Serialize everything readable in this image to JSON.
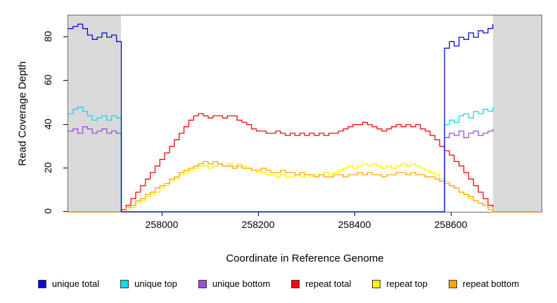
{
  "figure": {
    "xlabel": "Coordinate in Reference Genome",
    "ylabel": "Read Coverage Depth"
  },
  "colors": {
    "shade": "#d9d9d9",
    "box": "#6e6e6e",
    "tick": "#000000"
  },
  "legend": {
    "items": [
      {
        "label": "unique total",
        "color": "#0b0bd8"
      },
      {
        "label": "unique top",
        "color": "#0fdce8"
      },
      {
        "label": "unique bottom",
        "color": "#9c4fde"
      },
      {
        "label": "repeat total",
        "color": "#f40a0a"
      },
      {
        "label": "repeat top",
        "color": "#fff000"
      },
      {
        "label": "repeat bottom",
        "color": "#ffa408"
      }
    ]
  },
  "chart_data": {
    "type": "line",
    "line_style": "step",
    "title": "",
    "xlabel": "Coordinate in Reference Genome",
    "ylabel": "Read Coverage Depth",
    "xlim": [
      257805,
      258786
    ],
    "ylim": [
      0,
      90
    ],
    "x_ticks": [
      258000,
      258200,
      258400,
      258600
    ],
    "y_ticks": [
      0,
      20,
      40,
      60,
      80
    ],
    "grid": false,
    "legend_position": "bottom",
    "shaded_regions": [
      {
        "name": "left-flank",
        "x0": 257805,
        "x1": 257915,
        "color": "#d9d9d9"
      },
      {
        "name": "right-flank",
        "x0": 258685,
        "x1": 258786,
        "color": "#d9d9d9"
      }
    ],
    "x_start": 257805,
    "x_step": 10,
    "draw_order": [
      "repeat total",
      "repeat top",
      "repeat bottom",
      "unique bottom",
      "unique top",
      "unique total"
    ],
    "series": [
      {
        "name": "unique total",
        "color": "#0b0bd8",
        "values": [
          84,
          85,
          86,
          84,
          81,
          79,
          80,
          82,
          80,
          81,
          78,
          0,
          0,
          0,
          0,
          0,
          0,
          0,
          0,
          0,
          0,
          0,
          0,
          0,
          0,
          0,
          0,
          0,
          0,
          0,
          0,
          0,
          0,
          0,
          0,
          0,
          0,
          0,
          0,
          0,
          0,
          0,
          0,
          0,
          0,
          0,
          0,
          0,
          0,
          0,
          0,
          0,
          0,
          0,
          0,
          0,
          0,
          0,
          0,
          0,
          0,
          0,
          0,
          0,
          0,
          0,
          0,
          0,
          0,
          0,
          0,
          0,
          0,
          0,
          0,
          0,
          0,
          0,
          75,
          78,
          76,
          80,
          79,
          82,
          80,
          83,
          82,
          84,
          86
        ]
      },
      {
        "name": "unique top",
        "color": "#0fdce8",
        "values": [
          45,
          47,
          48,
          46,
          44,
          42,
          43,
          44,
          42,
          44,
          43,
          0,
          0,
          0,
          0,
          0,
          0,
          0,
          0,
          0,
          0,
          0,
          0,
          0,
          0,
          0,
          0,
          0,
          0,
          0,
          0,
          0,
          0,
          0,
          0,
          0,
          0,
          0,
          0,
          0,
          0,
          0,
          0,
          0,
          0,
          0,
          0,
          0,
          0,
          0,
          0,
          0,
          0,
          0,
          0,
          0,
          0,
          0,
          0,
          0,
          0,
          0,
          0,
          0,
          0,
          0,
          0,
          0,
          0,
          0,
          0,
          0,
          0,
          0,
          0,
          0,
          0,
          0,
          40,
          42,
          41,
          44,
          45,
          43,
          46,
          45,
          47,
          46,
          48
        ]
      },
      {
        "name": "unique bottom",
        "color": "#9c4fde",
        "values": [
          37,
          38,
          36,
          39,
          38,
          36,
          37,
          38,
          36,
          37,
          36,
          0,
          0,
          0,
          0,
          0,
          0,
          0,
          0,
          0,
          0,
          0,
          0,
          0,
          0,
          0,
          0,
          0,
          0,
          0,
          0,
          0,
          0,
          0,
          0,
          0,
          0,
          0,
          0,
          0,
          0,
          0,
          0,
          0,
          0,
          0,
          0,
          0,
          0,
          0,
          0,
          0,
          0,
          0,
          0,
          0,
          0,
          0,
          0,
          0,
          0,
          0,
          0,
          0,
          0,
          0,
          0,
          0,
          0,
          0,
          0,
          0,
          0,
          0,
          0,
          0,
          0,
          0,
          34,
          36,
          35,
          37,
          34,
          36,
          37,
          35,
          36,
          37,
          38
        ]
      },
      {
        "name": "repeat total",
        "color": "#f40a0a",
        "values": [
          0,
          0,
          0,
          0,
          0,
          0,
          0,
          0,
          0,
          0,
          0,
          1,
          3,
          6,
          9,
          12,
          15,
          18,
          21,
          24,
          27,
          30,
          33,
          36,
          39,
          42,
          44,
          45,
          44,
          43,
          44,
          44,
          43,
          44,
          44,
          42,
          41,
          40,
          38,
          37,
          37,
          36,
          36,
          37,
          36,
          35,
          36,
          35,
          36,
          35,
          36,
          35,
          36,
          35,
          36,
          36,
          37,
          38,
          39,
          40,
          40,
          41,
          40,
          39,
          38,
          37,
          38,
          39,
          40,
          39,
          40,
          39,
          40,
          38,
          37,
          35,
          33,
          30,
          28,
          26,
          23,
          21,
          18,
          15,
          12,
          9,
          6,
          3,
          0,
          0,
          0,
          0,
          0,
          0,
          0,
          0,
          0,
          0,
          0
        ]
      },
      {
        "name": "repeat top",
        "color": "#fff000",
        "values": [
          0,
          0,
          0,
          0,
          0,
          0,
          0,
          0,
          0,
          0,
          0,
          0,
          1,
          2,
          4,
          5,
          7,
          8,
          9,
          11,
          12,
          14,
          15,
          17,
          18,
          19,
          20,
          21,
          21,
          20,
          21,
          22,
          21,
          22,
          21,
          22,
          21,
          20,
          19,
          18,
          18,
          17,
          17,
          16,
          17,
          16,
          16,
          17,
          16,
          17,
          16,
          17,
          17,
          18,
          17,
          18,
          19,
          20,
          21,
          20,
          21,
          22,
          21,
          22,
          21,
          20,
          21,
          20,
          21,
          22,
          21,
          22,
          21,
          20,
          19,
          18,
          17,
          15,
          14,
          12,
          11,
          9,
          8,
          6,
          5,
          4,
          3,
          2,
          0,
          0,
          0,
          0,
          0,
          0,
          0,
          0,
          0,
          0,
          0
        ]
      },
      {
        "name": "repeat bottom",
        "color": "#ffa408",
        "values": [
          0,
          0,
          0,
          0,
          0,
          0,
          0,
          0,
          0,
          0,
          0,
          0,
          2,
          3,
          5,
          6,
          8,
          9,
          11,
          12,
          13,
          15,
          16,
          18,
          19,
          20,
          21,
          22,
          23,
          22,
          23,
          22,
          21,
          21,
          20,
          21,
          20,
          20,
          19,
          19,
          20,
          19,
          18,
          18,
          19,
          18,
          18,
          17,
          18,
          17,
          17,
          16,
          17,
          16,
          16,
          17,
          17,
          16,
          17,
          17,
          18,
          17,
          18,
          17,
          17,
          16,
          17,
          17,
          18,
          18,
          17,
          18,
          17,
          17,
          16,
          16,
          15,
          14,
          13,
          12,
          11,
          9,
          8,
          7,
          5,
          4,
          3,
          1,
          0,
          0,
          0,
          0,
          0,
          0,
          0,
          0,
          0,
          0,
          0
        ]
      }
    ]
  }
}
